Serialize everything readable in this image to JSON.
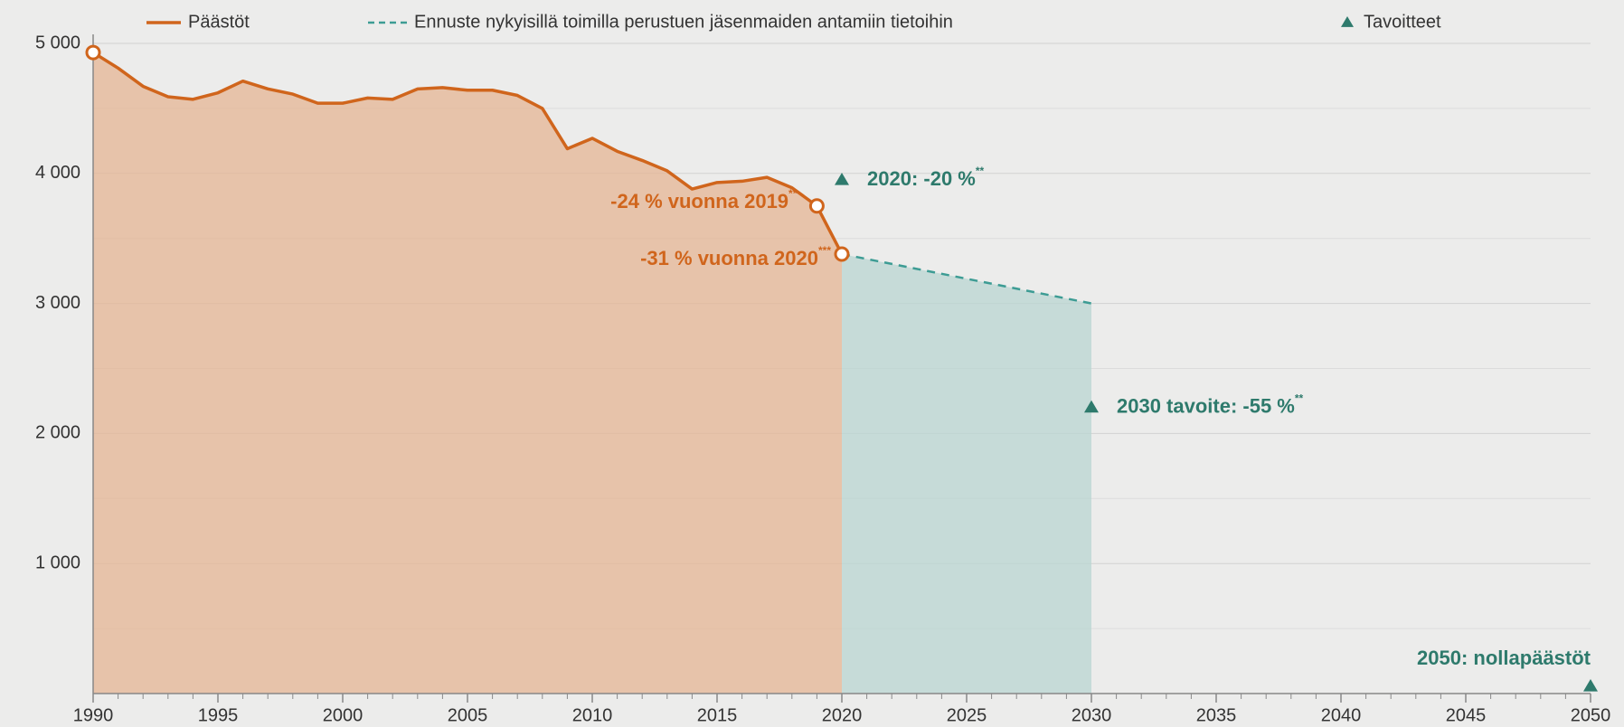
{
  "chart_data": {
    "type": "line",
    "series": [
      {
        "name": "Päästöt",
        "color": "#d0651c",
        "style": "solid",
        "fill": "#e6b594",
        "markers_at": [
          1990,
          2019,
          2020
        ],
        "x": [
          1990,
          1991,
          1992,
          1993,
          1994,
          1995,
          1996,
          1997,
          1998,
          1999,
          2000,
          2001,
          2002,
          2003,
          2004,
          2005,
          2006,
          2007,
          2008,
          2009,
          2010,
          2011,
          2012,
          2013,
          2014,
          2015,
          2016,
          2017,
          2018,
          2019,
          2020
        ],
        "values": [
          4930,
          4810,
          4670,
          4590,
          4570,
          4620,
          4710,
          4650,
          4610,
          4540,
          4540,
          4580,
          4570,
          4650,
          4660,
          4640,
          4640,
          4600,
          4500,
          4190,
          4270,
          4170,
          4100,
          4020,
          3880,
          3930,
          3940,
          3970,
          3890,
          3750,
          3380
        ]
      },
      {
        "name": "Ennuste nykyisillä toimilla perustuen jäsenmaiden antamiin tietoihin",
        "color": "#3d9c94",
        "style": "dashed",
        "fill": "#b9d6d2",
        "x": [
          2020,
          2030
        ],
        "values": [
          3380,
          3000
        ]
      }
    ],
    "targets": {
      "name": "Tavoitteet",
      "color": "#2e7a6c",
      "x": [
        2020,
        2030,
        2050
      ],
      "values": [
        3950,
        2200,
        0
      ]
    },
    "annotations": [
      {
        "text": "-24 % vuonna 2019",
        "sup": "**",
        "color": "#d0651c"
      },
      {
        "text": "-31 % vuonna 2020",
        "sup": "***",
        "color": "#d0651c"
      },
      {
        "text": "2020: -20 %",
        "sup": "**",
        "color": "#2e7a6c"
      },
      {
        "text": "2030 tavoite: -55 %",
        "sup": "**",
        "color": "#2e7a6c"
      },
      {
        "text": "2050: nollapäästöt",
        "color": "#2e7a6c"
      }
    ],
    "xlim": [
      1990,
      2050
    ],
    "xticks": [
      1990,
      1995,
      2000,
      2005,
      2010,
      2015,
      2020,
      2025,
      2030,
      2035,
      2040,
      2045,
      2050
    ],
    "minor_xticks": [
      1991,
      1992,
      1993,
      1994,
      1996,
      1997,
      1998,
      1999,
      2001,
      2002,
      2003,
      2004,
      2006,
      2007,
      2008,
      2009,
      2011,
      2012,
      2013,
      2014,
      2016,
      2017,
      2018,
      2019,
      2021,
      2022,
      2023,
      2024,
      2026,
      2027,
      2028,
      2029,
      2031,
      2032,
      2033,
      2034,
      2036,
      2037,
      2038,
      2039,
      2041,
      2042,
      2043,
      2044,
      2046,
      2047,
      2048,
      2049
    ],
    "ylim": [
      0,
      5000
    ],
    "yticks": [
      {
        "value": 1000,
        "label": "1 000"
      },
      {
        "value": 2000,
        "label": "2 000"
      },
      {
        "value": 3000,
        "label": "3 000"
      },
      {
        "value": 4000,
        "label": "4 000"
      },
      {
        "value": 5000,
        "label": "5 000"
      }
    ],
    "minor_yticks": [
      500,
      1500,
      2500,
      3500,
      4500
    ],
    "grid": true
  }
}
